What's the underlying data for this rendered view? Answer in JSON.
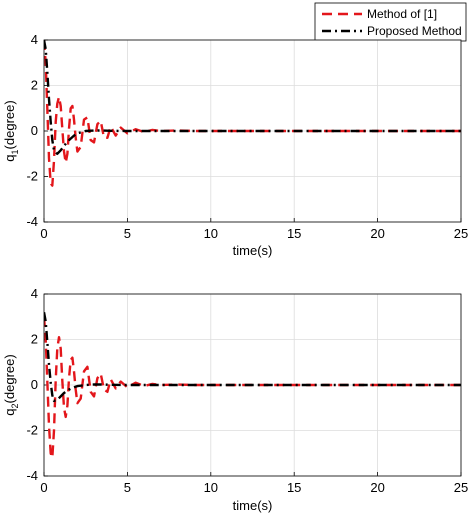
{
  "legend": {
    "entries": [
      {
        "label": "Method of [1]",
        "color": "#e3161b",
        "dash": "dashed"
      },
      {
        "label": "Proposed Method",
        "color": "#000000",
        "dash": "dashdot"
      }
    ],
    "placement": "top-right (outside plot)"
  },
  "chart_data": [
    {
      "type": "line",
      "xlabel": "time(s)",
      "ylabel": "q1(degree)",
      "ylabel_main": "q",
      "ylabel_sub": "1",
      "ylabel_tail": "(degree)",
      "xlim": [
        0,
        25
      ],
      "ylim": [
        -4,
        4
      ],
      "xticks": [
        "0",
        "5",
        "10",
        "15",
        "20",
        "25"
      ],
      "yticks": [
        "-4",
        "-2",
        "0",
        "2",
        "4"
      ],
      "grid": true,
      "series": [
        {
          "name": "Method of [1]",
          "x": [
            0,
            0.1,
            0.2,
            0.3,
            0.4,
            0.5,
            0.6,
            0.7,
            0.8,
            0.9,
            1.0,
            1.1,
            1.2,
            1.3,
            1.4,
            1.5,
            1.6,
            1.7,
            1.8,
            1.9,
            2.0,
            2.2,
            2.4,
            2.6,
            2.8,
            3.0,
            3.2,
            3.4,
            3.6,
            3.8,
            4.0,
            4.3,
            4.6,
            5.0,
            5.5,
            6.0,
            6.5,
            7.0,
            8.0,
            9.0,
            10,
            15,
            20,
            25
          ],
          "y": [
            4.0,
            3.0,
            1.0,
            -1.2,
            -2.3,
            -2.4,
            -1.3,
            0.4,
            1.2,
            1.5,
            1.1,
            0.1,
            -0.9,
            -1.4,
            -1.0,
            0.1,
            1.0,
            1.1,
            0.5,
            -0.3,
            -0.9,
            -0.7,
            0.5,
            0.6,
            -0.4,
            -0.5,
            0.3,
            0.45,
            -0.3,
            -0.3,
            0.2,
            -0.2,
            0.15,
            -0.1,
            0.08,
            -0.05,
            0.05,
            0.0,
            0.02,
            0.0,
            0.0,
            0.0,
            0.0,
            0.0
          ]
        },
        {
          "name": "Proposed Method",
          "x": [
            0,
            0.1,
            0.2,
            0.3,
            0.4,
            0.5,
            0.6,
            0.8,
            1.0,
            1.2,
            1.5,
            1.8,
            2.0,
            2.5,
            3.0,
            3.5,
            4.0,
            5.0,
            6.0,
            7.0,
            10,
            15,
            20,
            25
          ],
          "y": [
            4.0,
            3.6,
            2.6,
            1.4,
            0.4,
            -0.4,
            -0.85,
            -1.0,
            -0.85,
            -0.65,
            -0.4,
            -0.2,
            -0.1,
            0.0,
            0.02,
            0.02,
            0.01,
            0.0,
            0.0,
            0.0,
            0.0,
            0.0,
            0.0,
            0.0
          ]
        }
      ]
    },
    {
      "type": "line",
      "xlabel": "time(s)",
      "ylabel": "q2(degree)",
      "ylabel_main": "q",
      "ylabel_sub": "2",
      "ylabel_tail": "(degree)",
      "xlim": [
        0,
        25
      ],
      "ylim": [
        -4,
        4
      ],
      "xticks": [
        "0",
        "5",
        "10",
        "15",
        "20",
        "25"
      ],
      "yticks": [
        "-4",
        "-2",
        "0",
        "2",
        "4"
      ],
      "grid": true,
      "series": [
        {
          "name": "Method of [1]",
          "x": [
            0,
            0.1,
            0.2,
            0.3,
            0.4,
            0.5,
            0.6,
            0.7,
            0.8,
            0.9,
            1.0,
            1.1,
            1.2,
            1.3,
            1.4,
            1.5,
            1.6,
            1.7,
            1.8,
            1.9,
            2.0,
            2.2,
            2.4,
            2.6,
            2.8,
            3.0,
            3.2,
            3.4,
            3.6,
            3.8,
            4.0,
            4.3,
            4.6,
            5.0,
            5.5,
            6.0,
            6.5,
            7.0,
            8.0,
            9.0,
            10,
            15,
            20,
            25
          ],
          "y": [
            3.0,
            2.0,
            0.2,
            -1.8,
            -3.0,
            -3.2,
            -2.0,
            0.2,
            1.6,
            2.1,
            1.6,
            0.2,
            -1.0,
            -1.4,
            -0.9,
            0.3,
            1.1,
            1.2,
            0.6,
            -0.2,
            -0.8,
            -0.6,
            0.6,
            0.8,
            -0.3,
            -0.5,
            0.3,
            0.5,
            -0.2,
            -0.3,
            0.25,
            -0.15,
            0.15,
            -0.1,
            0.1,
            -0.05,
            0.05,
            0.0,
            0.02,
            0.0,
            0.0,
            0.0,
            0.0,
            0.0
          ]
        },
        {
          "name": "Proposed Method",
          "x": [
            0,
            0.1,
            0.2,
            0.3,
            0.4,
            0.5,
            0.6,
            0.8,
            1.0,
            1.2,
            1.5,
            1.8,
            2.0,
            2.5,
            3.0,
            3.5,
            4.0,
            5.0,
            6.0,
            7.0,
            10,
            15,
            20,
            25
          ],
          "y": [
            3.2,
            2.8,
            1.9,
            0.9,
            0.1,
            -0.45,
            -0.7,
            -0.65,
            -0.5,
            -0.35,
            -0.2,
            -0.1,
            -0.05,
            0.0,
            0.02,
            0.02,
            0.01,
            0.0,
            0.0,
            0.0,
            0.0,
            0.0,
            0.0,
            0.0
          ]
        }
      ]
    }
  ]
}
